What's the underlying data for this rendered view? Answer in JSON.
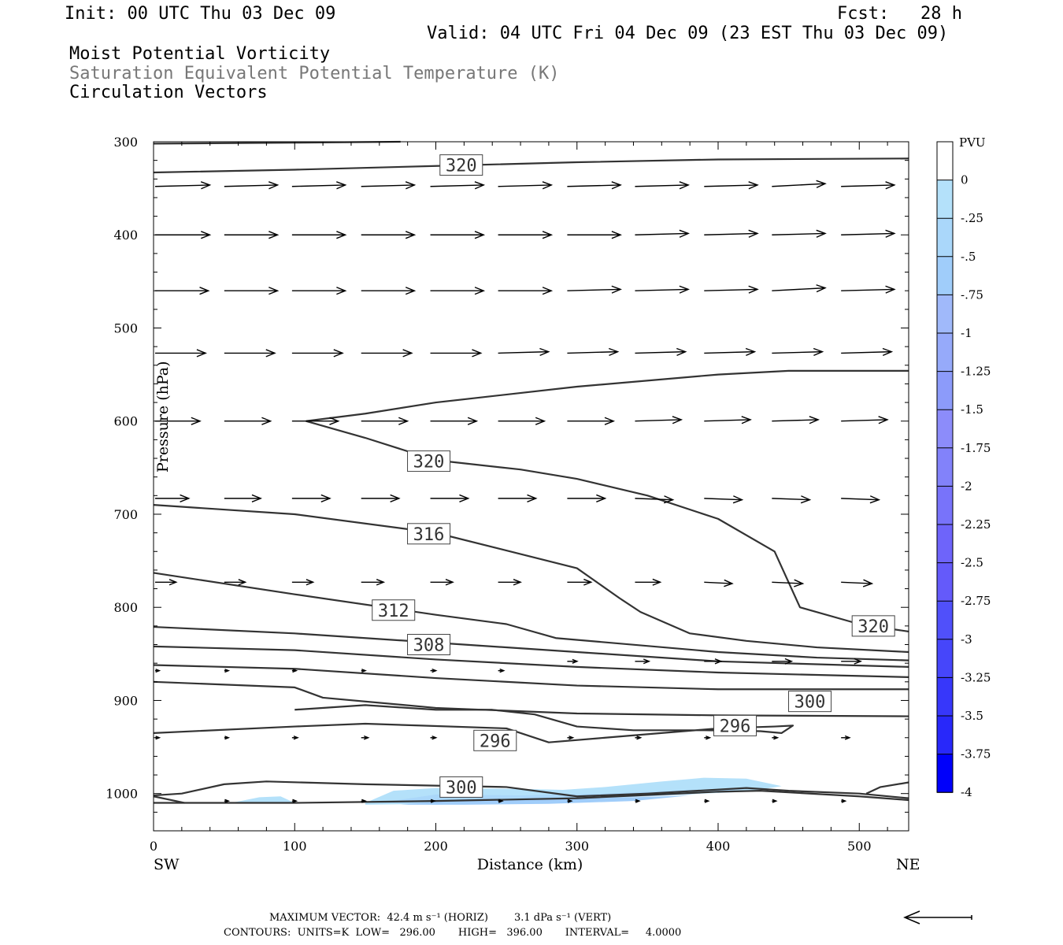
{
  "header": {
    "init": "Init: 00 UTC Thu 03 Dec 09",
    "fcst": "Fcst:   28 h",
    "valid": "Valid: 04 UTC Fri 04 Dec 09 (23 EST Thu 03 Dec 09)",
    "field1": "Moist Potential Vorticity",
    "field2": "Saturation Equivalent Potential Temperature (K)",
    "field3": "Circulation Vectors"
  },
  "footer": {
    "max_vector": "MAXIMUM VECTOR:  42.4 m s⁻¹ (HORIZ)        3.1 dPa s⁻¹ (VERT)",
    "contours": "CONTOURS:  UNITS=K  LOW=   296.00       HIGH=   396.00       INTERVAL=     4.0000"
  },
  "chart_data": {
    "type": "contour-cross-section",
    "xlabel": "Distance (km)",
    "ylabel": "Pressure (hPa)",
    "xlim": [
      0,
      535
    ],
    "ylim": [
      300,
      1040
    ],
    "x_ticks": [
      0,
      100,
      200,
      300,
      400,
      500
    ],
    "y_ticks": [
      300,
      400,
      500,
      600,
      700,
      800,
      900,
      1000
    ],
    "x_end_labels": {
      "left": "SW",
      "right": "NE"
    },
    "colorbar": {
      "title": "PVU",
      "labels": [
        "0",
        "-.25",
        "-.5",
        "-.75",
        "-1",
        "-1.25",
        "-1.5",
        "-1.75",
        "-2",
        "-2.25",
        "-2.5",
        "-2.75",
        "-3",
        "-3.25",
        "-3.5",
        "-3.75",
        "-4"
      ],
      "colors": [
        "#ffffff",
        "#b4e1fa",
        "#aad7fa",
        "#a0cdfa",
        "#a0b9fa",
        "#96aafa",
        "#8c9bfa",
        "#8c8cfa",
        "#8282fa",
        "#7873fa",
        "#6e64fa",
        "#645afa",
        "#5050fa",
        "#4646fa",
        "#3737fa",
        "#2828fa",
        "#0000fa"
      ]
    },
    "contours": [
      {
        "label": "320",
        "points": [
          [
            0,
            333
          ],
          [
            100,
            330
          ],
          [
            200,
            326
          ],
          [
            300,
            322
          ],
          [
            400,
            319
          ],
          [
            535,
            318
          ]
        ]
      },
      {
        "label": "",
        "points": [
          [
            0,
            302
          ],
          [
            100,
            301
          ],
          [
            175,
            300
          ]
        ]
      },
      {
        "label": "320",
        "points": [
          [
            108,
            600
          ],
          [
            150,
            592
          ],
          [
            200,
            580
          ],
          [
            300,
            563
          ],
          [
            400,
            550
          ],
          [
            450,
            546
          ],
          [
            535,
            546
          ]
        ]
      },
      {
        "label": "",
        "points": [
          [
            108,
            600
          ],
          [
            150,
            618
          ],
          [
            200,
            642
          ],
          [
            260,
            652
          ],
          [
            300,
            662
          ],
          [
            350,
            680
          ],
          [
            400,
            705
          ],
          [
            440,
            740
          ],
          [
            458,
            800
          ],
          [
            500,
            818
          ],
          [
            535,
            826
          ]
        ]
      },
      {
        "label": "316",
        "points": [
          [
            0,
            690
          ],
          [
            100,
            700
          ],
          [
            200,
            720
          ],
          [
            300,
            758
          ],
          [
            330,
            790
          ],
          [
            345,
            805
          ],
          [
            380,
            828
          ],
          [
            420,
            836
          ],
          [
            470,
            843
          ],
          [
            535,
            848
          ]
        ]
      },
      {
        "label": "312",
        "points": [
          [
            0,
            763
          ],
          [
            100,
            786
          ],
          [
            200,
            808
          ],
          [
            250,
            818
          ],
          [
            285,
            833
          ],
          [
            400,
            848
          ],
          [
            470,
            854
          ],
          [
            535,
            857
          ]
        ]
      },
      {
        "label": "308",
        "points": [
          [
            0,
            821
          ],
          [
            100,
            828
          ],
          [
            200,
            838
          ],
          [
            300,
            848
          ],
          [
            400,
            858
          ],
          [
            535,
            864
          ]
        ]
      },
      {
        "label": "",
        "points": [
          [
            0,
            842
          ],
          [
            100,
            846
          ],
          [
            200,
            856
          ],
          [
            300,
            864
          ],
          [
            400,
            870
          ],
          [
            535,
            875
          ]
        ]
      },
      {
        "label": "",
        "points": [
          [
            0,
            862
          ],
          [
            100,
            866
          ],
          [
            200,
            876
          ],
          [
            300,
            884
          ],
          [
            400,
            888
          ],
          [
            535,
            888
          ]
        ]
      },
      {
        "label": "300",
        "points": [
          [
            0,
            880
          ],
          [
            100,
            886
          ],
          [
            120,
            897
          ],
          [
            200,
            908
          ],
          [
            300,
            914
          ],
          [
            400,
            916
          ],
          [
            535,
            917
          ]
        ]
      },
      {
        "label": "296",
        "points": [
          [
            0,
            935
          ],
          [
            100,
            928
          ],
          [
            150,
            925
          ],
          [
            190,
            927
          ],
          [
            250,
            930
          ],
          [
            280,
            945
          ],
          [
            320,
            940
          ],
          [
            400,
            930
          ],
          [
            440,
            928
          ],
          [
            453,
            927
          ],
          [
            445,
            935
          ],
          [
            430,
            933
          ],
          [
            390,
            932
          ],
          [
            340,
            932
          ],
          [
            300,
            928
          ],
          [
            270,
            915
          ],
          [
            240,
            910
          ],
          [
            200,
            910
          ],
          [
            150,
            905
          ],
          [
            100,
            910
          ]
        ]
      },
      {
        "label": "300",
        "points": [
          [
            0,
            1002
          ],
          [
            20,
            1000
          ],
          [
            50,
            990
          ],
          [
            80,
            987
          ],
          [
            150,
            990
          ],
          [
            250,
            993
          ],
          [
            300,
            1003
          ],
          [
            350,
            1000
          ],
          [
            420,
            994
          ],
          [
            450,
            997
          ],
          [
            500,
            1000
          ],
          [
            535,
            1005
          ]
        ]
      },
      {
        "label": "",
        "points": [
          [
            0,
            1010
          ],
          [
            100,
            1010
          ],
          [
            200,
            1008
          ],
          [
            300,
            1005
          ],
          [
            400,
            998
          ],
          [
            430,
            997
          ],
          [
            500,
            1003
          ],
          [
            535,
            1007
          ]
        ]
      },
      {
        "label": "",
        "points": [
          [
            505,
            1000
          ],
          [
            515,
            993
          ],
          [
            535,
            988
          ]
        ]
      },
      {
        "label": "",
        "points": [
          [
            0,
            1003
          ],
          [
            22,
            1010
          ]
        ]
      }
    ],
    "contour_labels_at": [
      {
        "text": "320",
        "x": 218,
        "p": 325
      },
      {
        "text": "320",
        "x": 195,
        "p": 643
      },
      {
        "text": "316",
        "x": 195,
        "p": 721
      },
      {
        "text": "312",
        "x": 170,
        "p": 803
      },
      {
        "text": "308",
        "x": 195,
        "p": 840
      },
      {
        "text": "320",
        "x": 510,
        "p": 820
      },
      {
        "text": "300",
        "x": 465,
        "p": 901
      },
      {
        "text": "296",
        "x": 242,
        "p": 943
      },
      {
        "text": "296",
        "x": 412,
        "p": 927
      },
      {
        "text": "300",
        "x": 218,
        "p": 993
      }
    ],
    "pv_shading": [
      {
        "level": "-.25",
        "points": [
          [
            55,
            1010
          ],
          [
            75,
            1004
          ],
          [
            90,
            1003
          ],
          [
            100,
            1010
          ]
        ]
      },
      {
        "level": "-.25",
        "points": [
          [
            150,
            1010
          ],
          [
            170,
            997
          ],
          [
            200,
            994
          ],
          [
            260,
            995
          ],
          [
            290,
            996
          ],
          [
            320,
            993
          ],
          [
            360,
            987
          ],
          [
            390,
            983
          ],
          [
            420,
            984
          ],
          [
            445,
            992
          ],
          [
            420,
            998
          ],
          [
            360,
            1002
          ],
          [
            300,
            1005
          ],
          [
            250,
            1008
          ],
          [
            200,
            1011
          ],
          [
            150,
            1012
          ]
        ]
      },
      {
        "level": "-.5",
        "points": [
          [
            160,
            1010
          ],
          [
            200,
            1001
          ],
          [
            260,
            1002
          ],
          [
            320,
            1000
          ],
          [
            380,
            996
          ],
          [
            420,
            995
          ],
          [
            380,
            1001
          ],
          [
            320,
            1005
          ],
          [
            260,
            1009
          ],
          [
            200,
            1012
          ]
        ]
      },
      {
        "level": "-.75",
        "points": [
          [
            175,
            1012
          ],
          [
            220,
            1006
          ],
          [
            280,
            1006
          ],
          [
            340,
            1004
          ],
          [
            380,
            1002
          ],
          [
            340,
            1008
          ],
          [
            280,
            1011
          ],
          [
            220,
            1012
          ]
        ]
      }
    ],
    "vectors": {
      "x_positions": [
        0,
        49,
        97,
        146,
        195,
        243,
        292,
        340,
        389,
        437,
        486
      ],
      "rows": [
        {
          "p": 348,
          "u": [
            39,
            38,
            38,
            38,
            38,
            38,
            38,
            38,
            38,
            38,
            38
          ],
          "w": [
            -1,
            -1,
            -1,
            -1,
            -1,
            -1,
            -1,
            -1,
            -1,
            -2,
            -1
          ]
        },
        {
          "p": 400,
          "u": [
            39,
            38,
            38,
            38,
            38,
            38,
            38,
            38,
            38,
            38,
            38
          ],
          "w": [
            0,
            0,
            0,
            0,
            0,
            0,
            0,
            -1,
            -1,
            -1,
            -1
          ]
        },
        {
          "p": 460,
          "u": [
            38,
            38,
            38,
            38,
            38,
            38,
            38,
            38,
            38,
            38,
            38
          ],
          "w": [
            0,
            0,
            0,
            0,
            0,
            0,
            -1,
            -1,
            -1,
            -2,
            -1
          ]
        },
        {
          "p": 527,
          "u": [
            36,
            36,
            36,
            36,
            36,
            36,
            36,
            36,
            36,
            36,
            36
          ],
          "w": [
            0,
            0,
            0,
            0,
            0,
            -1,
            -1,
            -1,
            -1,
            -1,
            -1
          ]
        },
        {
          "p": 600,
          "u": [
            32,
            33,
            33,
            33,
            33,
            33,
            33,
            33,
            33,
            33,
            33
          ],
          "w": [
            0,
            0,
            0,
            0,
            0,
            0,
            0,
            -1,
            -1,
            -1,
            -1
          ]
        },
        {
          "p": 683,
          "u": [
            24,
            26,
            27,
            27,
            27,
            27,
            27,
            27,
            27,
            27,
            27
          ],
          "w": [
            0,
            0,
            0,
            0,
            0,
            0,
            0,
            1,
            1,
            1,
            1
          ]
        },
        {
          "p": 773,
          "u": [
            15,
            15,
            15,
            16,
            16,
            16,
            17,
            18,
            20,
            22,
            22
          ],
          "w": [
            0,
            0,
            0,
            0,
            0,
            0,
            0,
            0,
            1,
            1,
            1
          ]
        },
        {
          "p": 858,
          "u": [
            0,
            0,
            0,
            0,
            0,
            0,
            7,
            10,
            12,
            14,
            14
          ],
          "w": [
            0,
            0,
            0,
            0,
            0,
            0,
            0,
            0,
            0,
            0,
            0
          ]
        },
        {
          "p": 868,
          "u": [
            3,
            3,
            3,
            3,
            4,
            4,
            0,
            0,
            0,
            0,
            0
          ],
          "w": [
            0,
            0,
            0,
            0,
            0,
            0,
            0,
            0,
            0,
            0,
            0
          ]
        },
        {
          "p": 940,
          "u": [
            3,
            3,
            4,
            5,
            4,
            4,
            4,
            4,
            4,
            4,
            6
          ],
          "w": [
            0,
            0,
            0,
            0,
            0,
            0,
            0,
            0,
            0,
            0,
            0
          ]
        },
        {
          "p": 1008,
          "u": [
            0,
            3,
            3,
            3,
            3,
            3,
            3,
            3,
            3,
            3,
            3
          ],
          "w": [
            0,
            0,
            0,
            0,
            0,
            0,
            0,
            0,
            0,
            0,
            0
          ]
        }
      ]
    }
  }
}
